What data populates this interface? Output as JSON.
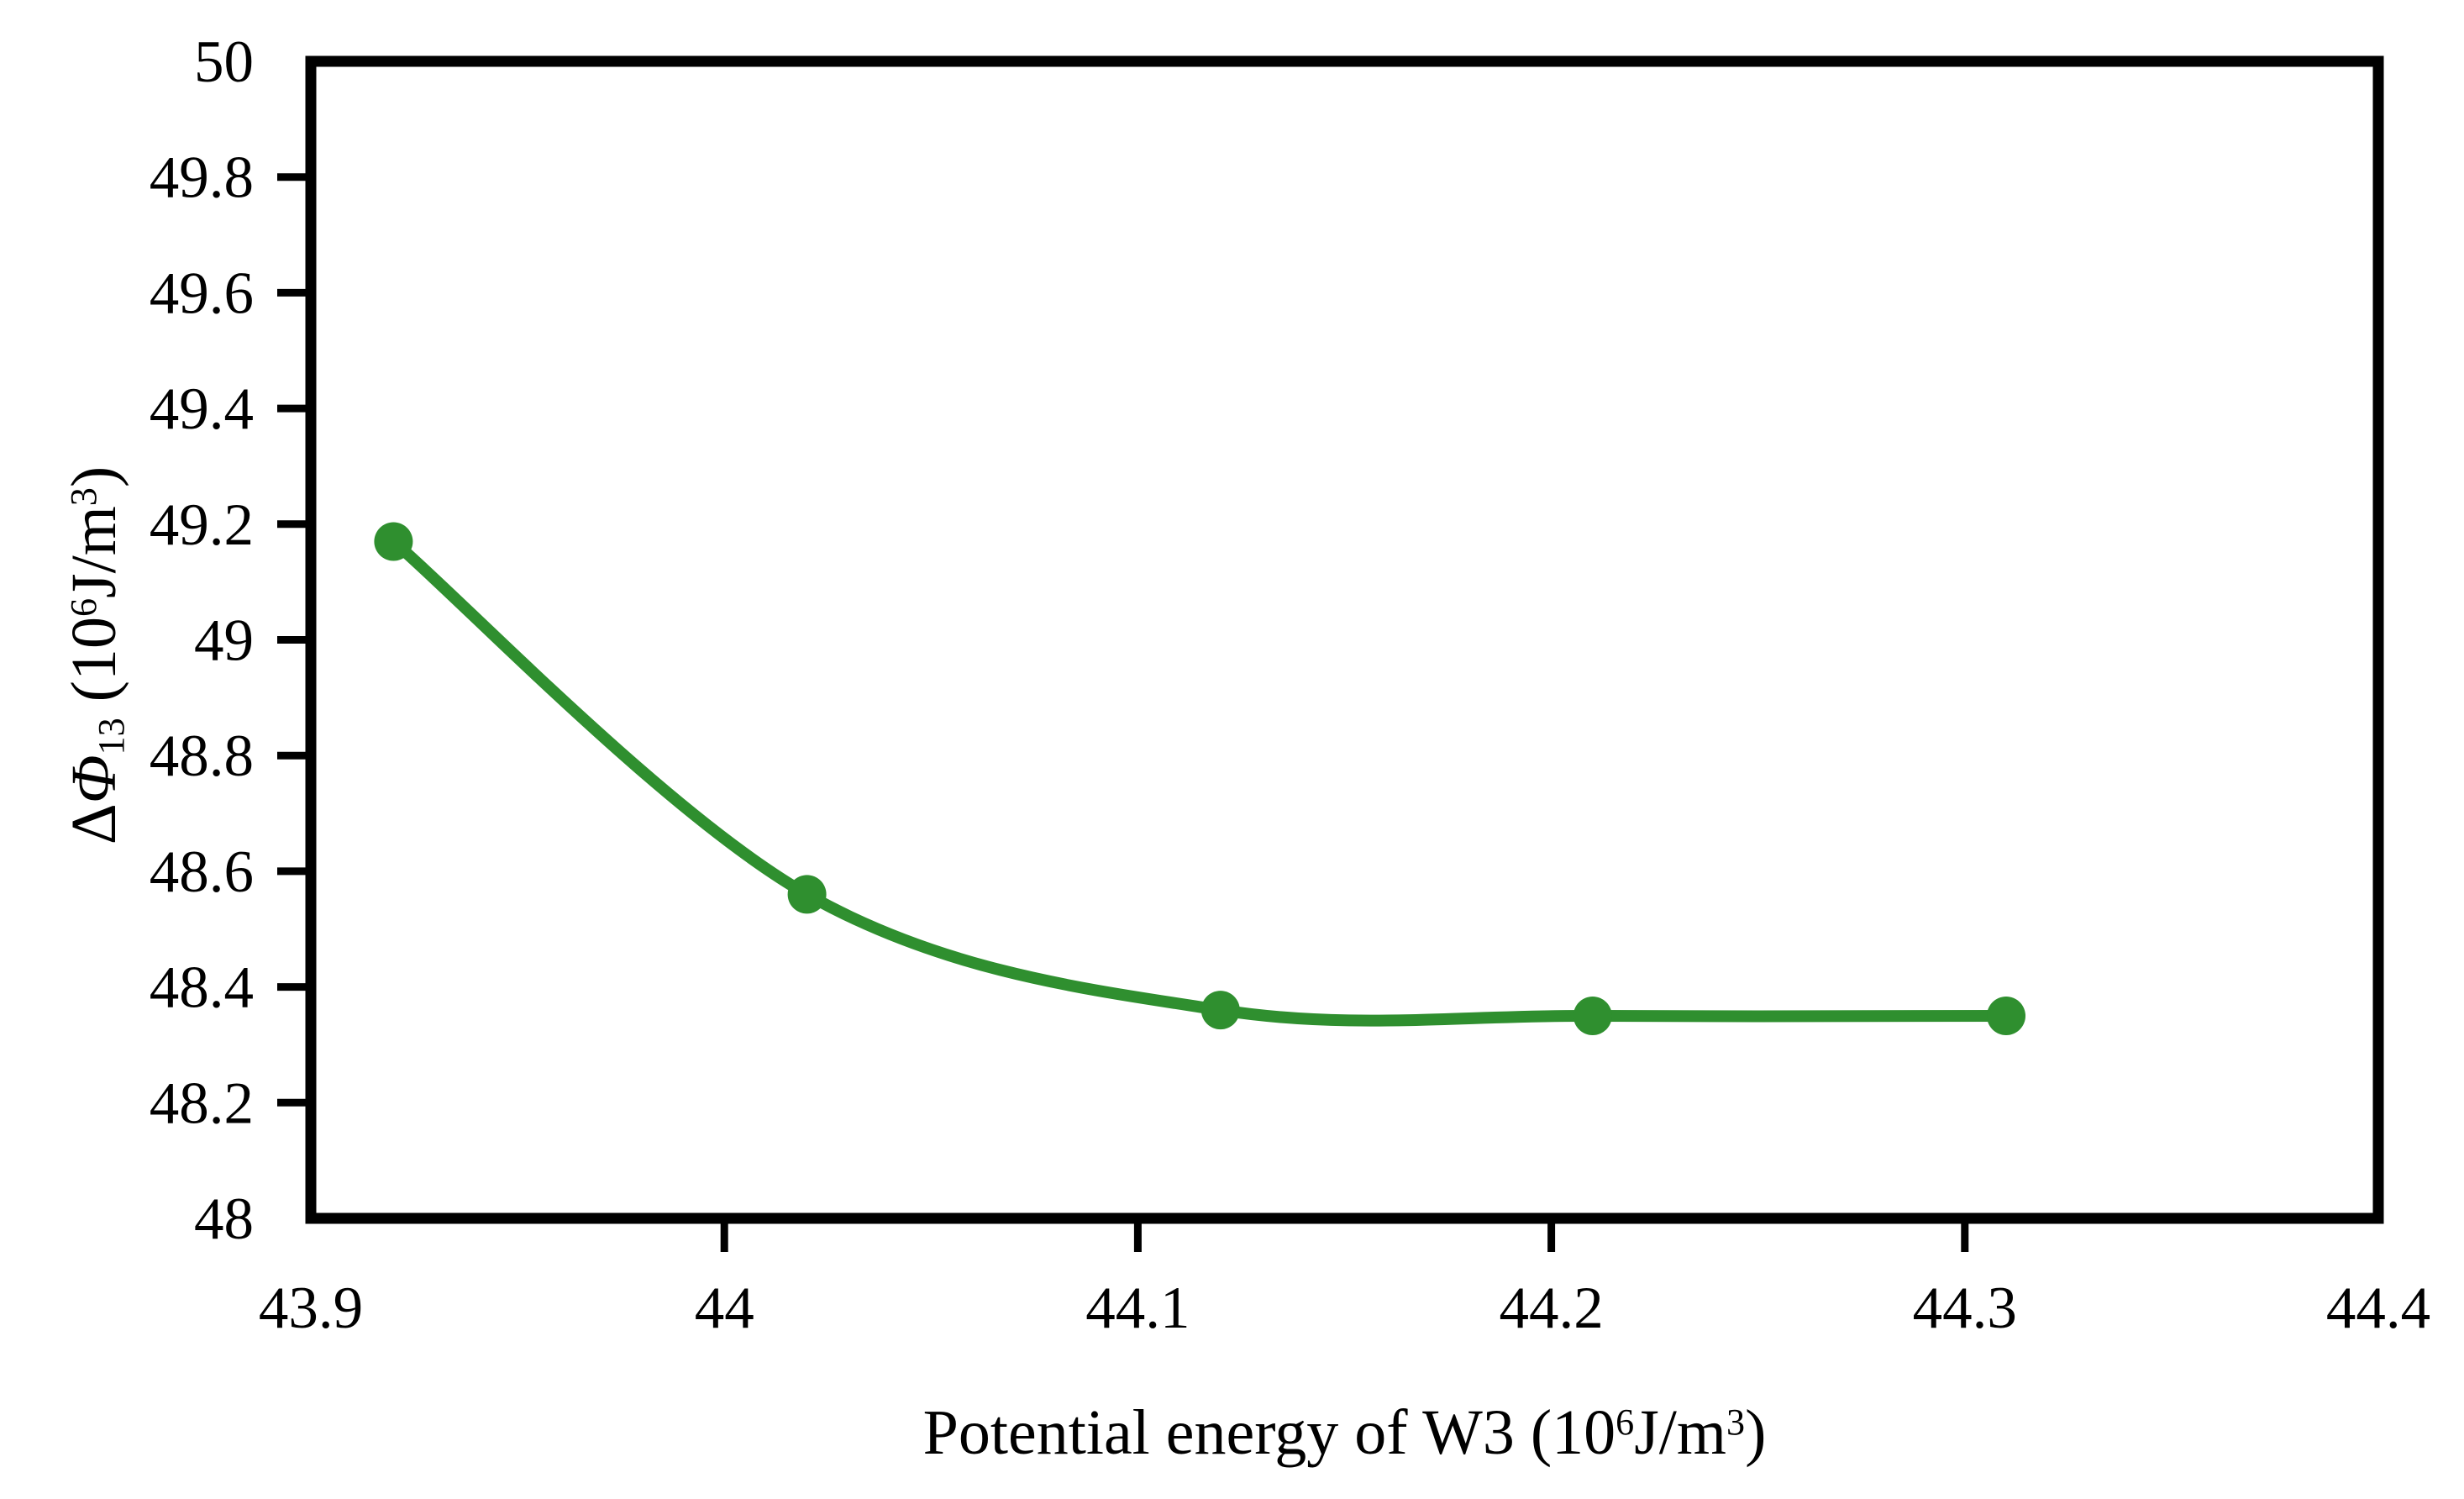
{
  "chart_data": {
    "type": "line",
    "title": "",
    "grid": false,
    "legend": false,
    "background": "#ffffff",
    "axis_color": "#000000",
    "x_axis": {
      "label_text": "Potential energy of W3 (10⁶J/m³)",
      "label_parts": [
        {
          "text": "Potential energy of W3 (10"
        },
        {
          "text": "6",
          "sup": true
        },
        {
          "text": "J/m"
        },
        {
          "text": "3",
          "sup": true
        },
        {
          "text": ")"
        }
      ],
      "min": 43.9,
      "max": 44.4,
      "tick_values": [
        43.9,
        44.0,
        44.1,
        44.2,
        44.3,
        44.4
      ],
      "tick_labels": [
        "43.9",
        "44",
        "44.1",
        "44.2",
        "44.3",
        "44.4"
      ]
    },
    "y_axis": {
      "label_text": "ΔΦ₁₃ (10⁶J/m³)",
      "label_parts": [
        {
          "text": "Δ"
        },
        {
          "text": "Φ",
          "italic": true
        },
        {
          "text": "13",
          "sub": true
        },
        {
          "text": " (10"
        },
        {
          "text": "6",
          "sup": true
        },
        {
          "text": "J/m"
        },
        {
          "text": "3",
          "sup": true
        },
        {
          "text": ")"
        }
      ],
      "min": 48,
      "max": 50,
      "tick_values": [
        48,
        48.2,
        48.4,
        48.6,
        48.8,
        49,
        49.2,
        49.4,
        49.6,
        49.8,
        50
      ],
      "tick_labels": [
        "48",
        "48.2",
        "48.4",
        "48.6",
        "48.8",
        "49",
        "49.2",
        "49.4",
        "49.6",
        "49.8",
        "50"
      ]
    },
    "series": [
      {
        "color": "#2f8f2f",
        "marker": "circle",
        "smooth": true,
        "x": [
          43.92,
          44.02,
          44.12,
          44.21,
          44.31
        ],
        "y": [
          49.17,
          48.56,
          48.36,
          48.35,
          48.35
        ]
      }
    ]
  }
}
